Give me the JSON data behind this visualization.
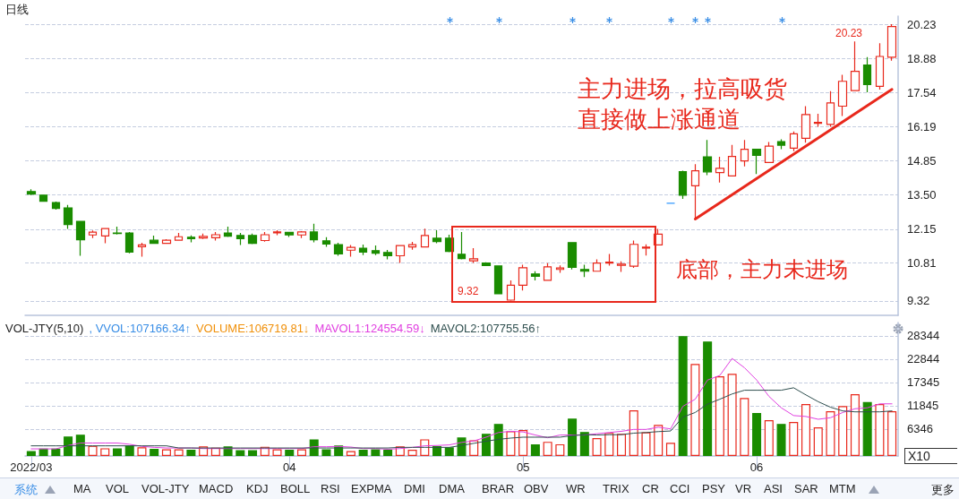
{
  "chart_data": [
    {
      "type": "candlestick",
      "title": "日线",
      "categories": [
        "2022/03",
        null,
        null,
        null,
        null,
        null,
        null,
        null,
        null,
        null,
        null,
        null,
        null,
        null,
        null,
        null,
        null,
        null,
        null,
        null,
        null,
        "04",
        null,
        null,
        null,
        null,
        null,
        null,
        null,
        null,
        null,
        null,
        null,
        null,
        null,
        null,
        null,
        null,
        null,
        null,
        "05",
        null,
        null,
        null,
        null,
        null,
        null,
        null,
        null,
        null,
        null,
        null,
        null,
        null,
        null,
        null,
        null,
        null,
        null,
        "06",
        null,
        null,
        null,
        null,
        null,
        null,
        null,
        null,
        null,
        null,
        null
      ],
      "ohlc": [
        [
          13.63,
          13.72,
          13.49,
          13.53
        ],
        [
          13.49,
          13.51,
          13.25,
          13.25
        ],
        [
          13.2,
          13.24,
          12.92,
          12.97
        ],
        [
          12.99,
          13.1,
          12.16,
          12.33
        ],
        [
          12.46,
          12.46,
          11.1,
          11.73
        ],
        [
          11.92,
          12.1,
          11.8,
          12.03
        ],
        [
          11.88,
          12.17,
          11.59,
          12.17
        ],
        [
          12.0,
          12.25,
          11.94,
          11.98
        ],
        [
          12.0,
          12.04,
          11.2,
          11.24
        ],
        [
          11.46,
          11.61,
          11.06,
          11.53
        ],
        [
          11.71,
          11.89,
          11.59,
          11.59
        ],
        [
          11.59,
          11.75,
          11.57,
          11.71
        ],
        [
          11.71,
          12.0,
          11.71,
          11.85
        ],
        [
          11.83,
          11.9,
          11.63,
          11.77
        ],
        [
          11.8,
          11.97,
          11.76,
          11.86
        ],
        [
          11.81,
          12.04,
          11.7,
          11.93
        ],
        [
          12.0,
          12.25,
          11.84,
          11.87
        ],
        [
          11.9,
          12.0,
          11.52,
          11.77
        ],
        [
          11.9,
          11.97,
          11.56,
          11.59
        ],
        [
          11.7,
          12.04,
          11.66,
          11.93
        ],
        [
          12.0,
          12.11,
          11.91,
          12.04
        ],
        [
          12.02,
          12.04,
          11.84,
          11.92
        ],
        [
          11.92,
          12.07,
          11.8,
          12.04
        ],
        [
          12.04,
          12.36,
          11.63,
          11.73
        ],
        [
          11.69,
          11.83,
          11.45,
          11.56
        ],
        [
          11.54,
          11.61,
          11.1,
          11.17
        ],
        [
          11.32,
          11.52,
          11.06,
          11.43
        ],
        [
          11.4,
          11.54,
          11.13,
          11.24
        ],
        [
          11.3,
          11.51,
          11.13,
          11.2
        ],
        [
          11.23,
          11.33,
          10.96,
          11.1
        ],
        [
          11.1,
          11.5,
          10.82,
          11.5
        ],
        [
          11.45,
          11.65,
          11.34,
          11.54
        ],
        [
          11.45,
          12.17,
          11.45,
          11.9
        ],
        [
          11.79,
          12.11,
          11.59,
          11.66
        ],
        [
          11.79,
          11.93,
          11.24,
          11.27
        ],
        [
          11.16,
          12.04,
          10.96,
          10.99
        ],
        [
          10.9,
          11.4,
          10.82,
          10.98
        ],
        [
          10.81,
          10.84,
          10.71,
          10.71
        ],
        [
          10.7,
          10.72,
          9.6,
          9.6
        ],
        [
          9.35,
          10.13,
          9.32,
          9.94
        ],
        [
          9.94,
          10.75,
          9.73,
          10.63
        ],
        [
          10.38,
          10.49,
          10.13,
          10.29
        ],
        [
          10.13,
          10.81,
          10.13,
          10.66
        ],
        [
          10.56,
          10.72,
          10.43,
          10.62
        ],
        [
          11.62,
          11.62,
          10.56,
          10.64
        ],
        [
          10.56,
          10.75,
          10.26,
          10.49
        ],
        [
          10.49,
          10.96,
          10.49,
          10.81
        ],
        [
          10.81,
          11.17,
          10.71,
          10.85
        ],
        [
          10.72,
          10.88,
          10.46,
          10.77
        ],
        [
          10.69,
          11.7,
          10.62,
          11.55
        ],
        [
          11.4,
          11.55,
          11.11,
          11.44
        ],
        [
          11.53,
          12.16,
          11.53,
          11.95
        ],
        [
          13.17,
          13.17,
          13.17,
          13.17
        ],
        [
          14.42,
          14.46,
          13.34,
          13.49
        ],
        [
          13.86,
          14.71,
          12.55,
          14.45
        ],
        [
          15.0,
          15.67,
          14.28,
          14.41
        ],
        [
          14.38,
          15.0,
          13.99,
          14.55
        ],
        [
          14.25,
          15.47,
          14.25,
          15.02
        ],
        [
          14.84,
          15.67,
          14.62,
          15.3
        ],
        [
          15.3,
          15.3,
          14.32,
          15.06
        ],
        [
          14.78,
          15.59,
          14.78,
          15.42
        ],
        [
          15.6,
          15.69,
          15.3,
          15.46
        ],
        [
          15.34,
          16.0,
          15.22,
          15.91
        ],
        [
          15.73,
          17.0,
          15.56,
          16.67
        ],
        [
          16.32,
          16.7,
          16.19,
          16.36
        ],
        [
          16.28,
          17.59,
          16.19,
          17.13
        ],
        [
          17.0,
          18.24,
          16.61,
          17.98
        ],
        [
          17.61,
          19.55,
          17.61,
          18.37
        ],
        [
          18.62,
          18.93,
          17.55,
          17.85
        ],
        [
          17.78,
          19.48,
          17.65,
          18.96
        ],
        [
          18.93,
          20.23,
          18.79,
          20.14
        ]
      ],
      "colors": [
        "#1a8c00",
        "#1a8c00",
        "#1a8c00",
        "#1a8c00",
        "#1a8c00",
        "#e8281c",
        "#e8281c",
        "#1a8c00",
        "#1a8c00",
        "#e8281c",
        "#1a8c00",
        "#e8281c",
        "#e8281c",
        "#1a8c00",
        "#e8281c",
        "#e8281c",
        "#1a8c00",
        "#1a8c00",
        "#1a8c00",
        "#e8281c",
        "#e8281c",
        "#1a8c00",
        "#e8281c",
        "#1a8c00",
        "#1a8c00",
        "#1a8c00",
        "#e8281c",
        "#1a8c00",
        "#1a8c00",
        "#1a8c00",
        "#e8281c",
        "#e8281c",
        "#e8281c",
        "#1a8c00",
        "#1a8c00",
        "#1a8c00",
        "#e8281c",
        "#1a8c00",
        "#1a8c00",
        "#e8281c",
        "#e8281c",
        "#1a8c00",
        "#e8281c",
        "#e8281c",
        "#1a8c00",
        "#1a8c00",
        "#e8281c",
        "#e8281c",
        "#e8281c",
        "#e8281c",
        "#e8281c",
        "#e8281c",
        "#3399ff",
        "#1a8c00",
        "#e8281c",
        "#1a8c00",
        "#e8281c",
        "#e8281c",
        "#e8281c",
        "#1a8c00",
        "#e8281c",
        "#1a8c00",
        "#e8281c",
        "#e8281c",
        "#e8281c",
        "#e8281c",
        "#e8281c",
        "#e8281c",
        "#1a8c00",
        "#e8281c",
        "#e8281c"
      ],
      "series": [
        {
          "type": "line",
          "values": [
            null,
            null,
            null,
            null,
            null,
            null,
            null,
            null,
            null,
            null,
            null,
            null,
            null,
            null,
            null,
            null,
            null,
            null,
            null,
            null,
            null,
            null,
            null,
            null,
            null,
            null,
            null,
            null,
            null,
            null,
            null,
            null,
            null,
            null,
            null,
            null,
            null,
            null,
            null,
            null,
            null,
            null,
            null,
            null,
            null,
            null,
            null,
            null,
            null,
            null,
            null,
            null,
            null,
            null,
            12.55,
            null,
            null,
            null,
            null,
            null,
            null,
            null,
            null,
            null,
            null,
            null,
            null,
            null,
            null,
            null,
            17.66
          ],
          "color": "#e8281c"
        }
      ],
      "tick_labels": "y",
      "ylim": [
        8.75,
        20.55
      ],
      "yticks": [
        9.32,
        10.81,
        12.15,
        {
          "value": 13.5,
          "label": "13.50"
        },
        14.85,
        16.19,
        17.54,
        18.88,
        20.23
      ],
      "grid": "y",
      "marker": "none",
      "annotations": [
        "主力进场，拉高吸货",
        "直接做上涨通道",
        "底部，主力未进场",
        "9.32",
        "20.23"
      ]
    },
    {
      "type": "bar",
      "title": "VOL-JTY(5,10)",
      "categories": [
        "2022/03",
        null,
        null,
        null,
        null,
        null,
        null,
        null,
        null,
        null,
        null,
        null,
        null,
        null,
        null,
        null,
        null,
        null,
        null,
        null,
        null,
        "04",
        null,
        null,
        null,
        null,
        null,
        null,
        null,
        null,
        null,
        null,
        null,
        null,
        null,
        null,
        null,
        null,
        null,
        null,
        "05",
        null,
        null,
        null,
        null,
        null,
        null,
        null,
        null,
        null,
        null,
        null,
        null,
        null,
        null,
        null,
        null,
        null,
        null,
        "06",
        null,
        null,
        null,
        null,
        null,
        null,
        null,
        null,
        null,
        null,
        null
      ],
      "series": [
        {
          "color": "#1a8c00",
          "colors": [
            "#1a8c00",
            "#1a8c00",
            "#1a8c00",
            "#1a8c00",
            "#1a8c00",
            "#e8281c",
            "#e8281c",
            "#1a8c00",
            "#1a8c00",
            "#e8281c",
            "#1a8c00",
            "#e8281c",
            "#e8281c",
            "#1a8c00",
            "#e8281c",
            "#e8281c",
            "#1a8c00",
            "#1a8c00",
            "#1a8c00",
            "#e8281c",
            "#e8281c",
            "#1a8c00",
            "#e8281c",
            "#1a8c00",
            "#1a8c00",
            "#1a8c00",
            "#e8281c",
            "#1a8c00",
            "#1a8c00",
            "#1a8c00",
            "#e8281c",
            "#e8281c",
            "#e8281c",
            "#1a8c00",
            "#1a8c00",
            "#1a8c00",
            "#e8281c",
            "#1a8c00",
            "#1a8c00",
            "#e8281c",
            "#e8281c",
            "#1a8c00",
            "#e8281c",
            "#e8281c",
            "#1a8c00",
            "#1a8c00",
            "#e8281c",
            "#e8281c",
            "#e8281c",
            "#e8281c",
            "#e8281c",
            "#e8281c",
            "#e8281c",
            "#1a8c00",
            "#e8281c",
            "#1a8c00",
            "#e8281c",
            "#e8281c",
            "#e8281c",
            "#1a8c00",
            "#e8281c",
            "#1a8c00",
            "#e8281c",
            "#e8281c",
            "#e8281c",
            "#e8281c",
            "#e8281c",
            "#e8281c",
            "#1a8c00",
            "#e8281c",
            "#e8281c"
          ],
          "values": [
            1170,
            1750,
            1750,
            4590,
            5030,
            2400,
            1820,
            1820,
            2480,
            2040,
            1680,
            1600,
            1600,
            1460,
            2260,
            1970,
            2260,
            1380,
            1380,
            2190,
            1600,
            1460,
            1600,
            3930,
            1600,
            2480,
            1170,
            1460,
            1600,
            1460,
            2260,
            1460,
            3930,
            2330,
            2040,
            4370,
            3720,
            5250,
            7580,
            5830,
            6120,
            2770,
            3350,
            2770,
            8820,
            5680,
            4230,
            5460,
            5250,
            10780,
            5610,
            7360,
            3130,
            28300,
            21710,
            27030,
            18800,
            19380,
            13700,
            10130,
            8450,
            7580,
            8010,
            12240,
            6780,
            10560,
            11800,
            14570,
            12750,
            12240,
            10560
          ]
        },
        {
          "type": "line",
          "name": "MAVOL1:124554.59↓",
          "color": "#e040e0",
          "values": [
            1680,
            1680,
            1680,
            2480,
            3060,
            3060,
            3060,
            3060,
            2770,
            2260,
            2040,
            1890,
            1890,
            1890,
            1750,
            1750,
            1750,
            1750,
            1750,
            1750,
            1750,
            1750,
            1750,
            2190,
            2190,
            2260,
            2110,
            1750,
            1750,
            1600,
            1750,
            2040,
            2400,
            2480,
            2620,
            3210,
            3570,
            4440,
            5540,
            5830,
            5680,
            4950,
            4300,
            4950,
            4950,
            4950,
            5250,
            5540,
            5830,
            6270,
            6270,
            6780,
            6410,
            11730,
            13400,
            17920,
            19010,
            23020,
            20840,
            17920,
            14060,
            11370,
            9540,
            9330,
            8670,
            9030,
            10270,
            11150,
            11370,
            12310,
            12310
          ]
        },
        {
          "type": "line",
          "name": "MAVOL2:107755.56↑",
          "color": "#2f4f4f",
          "values": [
            2400,
            2400,
            2400,
            2400,
            2400,
            2400,
            2400,
            2400,
            2400,
            2400,
            2400,
            2400,
            1890,
            1890,
            1890,
            1890,
            1890,
            1890,
            1890,
            1890,
            1890,
            1890,
            1890,
            1890,
            1890,
            1890,
            1890,
            1890,
            1890,
            1890,
            2040,
            2040,
            2040,
            2040,
            2040,
            2480,
            2990,
            3500,
            3930,
            4230,
            4440,
            4440,
            4440,
            4440,
            4810,
            5030,
            4960,
            5030,
            5030,
            5390,
            5540,
            5760,
            5900,
            9180,
            10270,
            12240,
            13400,
            14640,
            15520,
            15520,
            15520,
            15520,
            16100,
            14420,
            12820,
            11510,
            10640,
            10420,
            10420,
            10420,
            10640
          ]
        }
      ],
      "ylim": [
        0,
        31500
      ],
      "yticks": [
        6346,
        11845,
        17345,
        22844,
        28344
      ],
      "grid": "y",
      "marker": "none",
      "annotations": [
        ", VVOL:107166.34↑",
        "VOLUME:106719.81↓",
        "X10",
        "系统",
        "MA",
        "VOL",
        "VOL-JTY",
        "MACD",
        "KDJ",
        "BOLL",
        "RSI",
        "EXPMA",
        "DMI",
        "DMA",
        "BRAR",
        "OBV",
        "WR",
        "TRIX",
        "CR",
        "CCI",
        "PSY",
        "VR",
        "ASI",
        "SAR",
        "MTM",
        "更多"
      ]
    }
  ]
}
